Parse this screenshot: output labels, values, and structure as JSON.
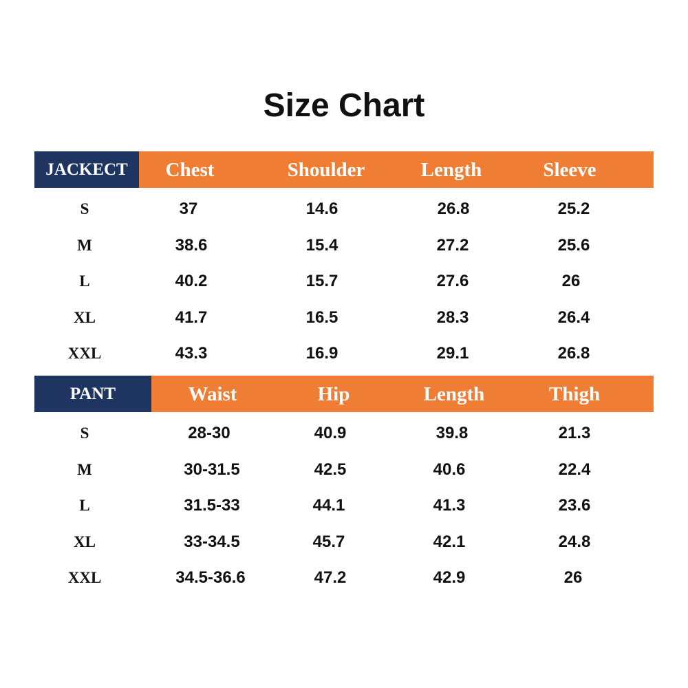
{
  "title": "Size Chart",
  "colors": {
    "header_orange": "#EF7D33",
    "label_navy": "#1E3461",
    "text": "#111111"
  },
  "jacket": {
    "label": "JACKECT",
    "columns": [
      "Chest",
      "Shoulder",
      "Length",
      "Sleeve"
    ],
    "rows": [
      {
        "size": "S",
        "values": [
          "37",
          "14.6",
          "26.8",
          "25.2"
        ]
      },
      {
        "size": "M",
        "values": [
          "38.6",
          "15.4",
          "27.2",
          "25.6"
        ]
      },
      {
        "size": "L",
        "values": [
          "40.2",
          "15.7",
          "27.6",
          "26"
        ]
      },
      {
        "size": "XL",
        "values": [
          "41.7",
          "16.5",
          "28.3",
          "26.4"
        ]
      },
      {
        "size": "XXL",
        "values": [
          "43.3",
          "16.9",
          "29.1",
          "26.8"
        ]
      }
    ]
  },
  "pant": {
    "label": "PANT",
    "columns": [
      "Waist",
      "Hip",
      "Length",
      "Thigh"
    ],
    "rows": [
      {
        "size": "S",
        "values": [
          "28-30",
          "40.9",
          "39.8",
          "21.3"
        ]
      },
      {
        "size": "M",
        "values": [
          "30-31.5",
          "42.5",
          "40.6",
          "22.4"
        ]
      },
      {
        "size": "L",
        "values": [
          "31.5-33",
          "44.1",
          "41.3",
          "23.6"
        ]
      },
      {
        "size": "XL",
        "values": [
          "33-34.5",
          "45.7",
          "42.1",
          "24.8"
        ]
      },
      {
        "size": "XXL",
        "values": [
          "34.5-36.6",
          "47.2",
          "42.9",
          "26"
        ]
      }
    ]
  }
}
